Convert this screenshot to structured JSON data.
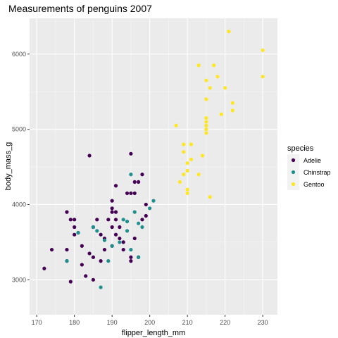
{
  "chart_data": {
    "type": "scatter",
    "title": "Measurements of penguins 2007",
    "xlabel": "flipper_length_mm",
    "ylabel": "body_mass_g",
    "xlim": [
      168.1,
      233.9
    ],
    "ylim": [
      2535,
      6475
    ],
    "x_ticks": [
      170,
      180,
      190,
      200,
      210,
      220,
      230
    ],
    "y_ticks": [
      3000,
      4000,
      5000,
      6000
    ],
    "grid": true,
    "legend": {
      "title": "species",
      "position": "right"
    },
    "series": [
      {
        "name": "Adelie",
        "color": "#440154",
        "points": [
          [
            172,
            3150
          ],
          [
            174,
            3400
          ],
          [
            178,
            3250
          ],
          [
            178,
            3900
          ],
          [
            179,
            2975
          ],
          [
            180,
            3800
          ],
          [
            180,
            3700
          ],
          [
            180,
            3600
          ],
          [
            181,
            3625
          ],
          [
            182,
            3200
          ],
          [
            182,
            3450
          ],
          [
            183,
            3050
          ],
          [
            184,
            4650
          ],
          [
            184,
            3350
          ],
          [
            185,
            3000
          ],
          [
            185,
            3700
          ],
          [
            185,
            3300
          ],
          [
            186,
            3800
          ],
          [
            187,
            3250
          ],
          [
            187,
            3600
          ],
          [
            188,
            3400
          ],
          [
            188,
            3550
          ],
          [
            189,
            3800
          ],
          [
            190,
            3450
          ],
          [
            190,
            3900
          ],
          [
            190,
            4050
          ],
          [
            190,
            3950
          ],
          [
            190,
            3700
          ],
          [
            191,
            4250
          ],
          [
            191,
            3600
          ],
          [
            191,
            3800
          ],
          [
            191,
            3900
          ],
          [
            192,
            3550
          ],
          [
            192,
            3700
          ],
          [
            193,
            3400
          ],
          [
            193,
            3500
          ],
          [
            194,
            4150
          ],
          [
            195,
            3250
          ],
          [
            195,
            3300
          ],
          [
            195,
            4675
          ],
          [
            195,
            4150
          ],
          [
            196,
            4150
          ],
          [
            196,
            4300
          ],
          [
            196,
            3550
          ],
          [
            197,
            3300
          ],
          [
            197,
            4300
          ],
          [
            198,
            3800
          ],
          [
            198,
            4400
          ],
          [
            199,
            4000
          ],
          [
            199,
            3850
          ],
          [
            178,
            3400
          ],
          [
            179,
            3800
          ]
        ]
      },
      {
        "name": "Chinstrap",
        "color": "#21908C",
        "points": [
          [
            178,
            3250
          ],
          [
            181,
            3625
          ],
          [
            185,
            3700
          ],
          [
            186,
            3650
          ],
          [
            187,
            2900
          ],
          [
            188,
            3525
          ],
          [
            189,
            3250
          ],
          [
            190,
            3450
          ],
          [
            192,
            3500
          ],
          [
            193,
            3800
          ],
          [
            194,
            3775
          ],
          [
            194,
            3650
          ],
          [
            195,
            3400
          ],
          [
            195,
            4400
          ],
          [
            196,
            3900
          ],
          [
            197,
            3750
          ],
          [
            198,
            3700
          ],
          [
            200,
            3950
          ],
          [
            201,
            4050
          ],
          [
            197,
            3300
          ]
        ]
      },
      {
        "name": "Gentoo",
        "color": "#FDE725",
        "points": [
          [
            207,
            5050
          ],
          [
            208,
            4300
          ],
          [
            209,
            4800
          ],
          [
            209,
            4400
          ],
          [
            209,
            4700
          ],
          [
            210,
            4550
          ],
          [
            210,
            4450
          ],
          [
            210,
            4200
          ],
          [
            210,
            4150
          ],
          [
            211,
            4600
          ],
          [
            211,
            4800
          ],
          [
            213,
            4400
          ],
          [
            213,
            5850
          ],
          [
            214,
            4650
          ],
          [
            215,
            5650
          ],
          [
            215,
            5400
          ],
          [
            215,
            5150
          ],
          [
            215,
            5100
          ],
          [
            215,
            5050
          ],
          [
            215,
            5000
          ],
          [
            215,
            4950
          ],
          [
            216,
            5550
          ],
          [
            216,
            4100
          ],
          [
            217,
            5850
          ],
          [
            218,
            5700
          ],
          [
            219,
            5200
          ],
          [
            220,
            5550
          ],
          [
            221,
            6300
          ],
          [
            222,
            5350
          ],
          [
            222,
            5250
          ],
          [
            230,
            6050
          ],
          [
            230,
            5700
          ]
        ]
      }
    ]
  }
}
